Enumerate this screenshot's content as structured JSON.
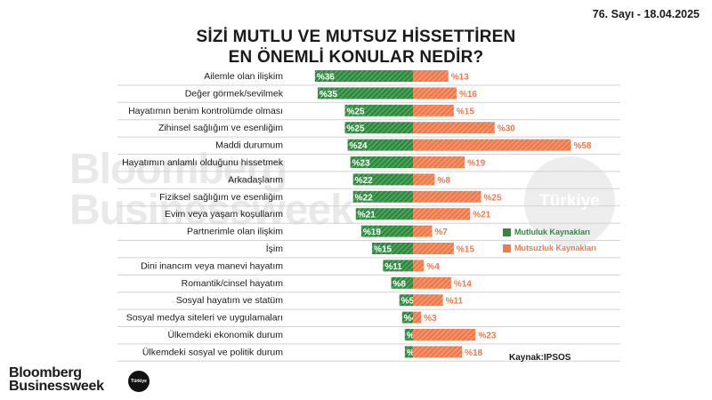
{
  "issue": "76. Sayı - 18.04.2025",
  "watermark": {
    "line1": "Bloomberg",
    "line2": "Businessweek",
    "circle": "Türkiye"
  },
  "colors": {
    "positive": "#2e8b3e",
    "negative": "#ef7a4b"
  },
  "chart_data": {
    "type": "bar",
    "title": [
      "SİZİ MUTLU VE MUTSUZ HİSSETTİREN",
      "EN ÖNEMLİ KONULAR NEDİR?"
    ],
    "categories": [
      "Ailemle olan ilişkim",
      "Değer görmek/sevilmek",
      "Hayatımın benim kontrolümde olması",
      "Zihinsel sağlığım ve esenliğim",
      "Maddi durumum",
      "Hayatımın anlamlı olduğunu hissetmek",
      "Arkadaşlarım",
      "Fiziksel sağlığım ve esenliğim",
      "Evim veya yaşam koşullarım",
      "Partnerimle olan ilişkim",
      "İşim",
      "Dini inancım veya manevi hayatım",
      "Romantik/cinsel hayatım",
      "Sosyal hayatım ve statüm",
      "Sosyal medya siteleri ve uygulamaları",
      "Ülkemdeki ekonomik durum",
      "Ülkemdeki sosyal ve politik durum"
    ],
    "series": [
      {
        "name": "Mutluluk Kaynakları",
        "values": [
          36,
          35,
          25,
          25,
          24,
          23,
          22,
          22,
          21,
          19,
          15,
          11,
          8,
          5,
          4,
          3,
          3
        ],
        "labels": [
          "%36",
          "%35",
          "%25",
          "%25",
          "%24",
          "%23",
          "%22",
          "%22",
          "%21",
          "%19",
          "%15",
          "%11",
          "%8",
          "%5",
          "%4",
          "%3",
          "%3"
        ]
      },
      {
        "name": "Mutsuzluk Kaynakları",
        "values": [
          13,
          16,
          15,
          30,
          58,
          19,
          8,
          25,
          21,
          7,
          15,
          4,
          14,
          11,
          3,
          23,
          18
        ],
        "labels": [
          "%13",
          "%16",
          "%15",
          "%30",
          "%58",
          "%19",
          "%8",
          "%25",
          "%21",
          "%7",
          "%15",
          "%4",
          "%14",
          "%11",
          "%3",
          "%23",
          "%18"
        ]
      }
    ],
    "grid": false,
    "legend_position": "right"
  },
  "source": "Kaynak:IPSOS",
  "logo": {
    "line1": "Bloomberg",
    "line2": "Businessweek",
    "badge": "Türkiye"
  }
}
